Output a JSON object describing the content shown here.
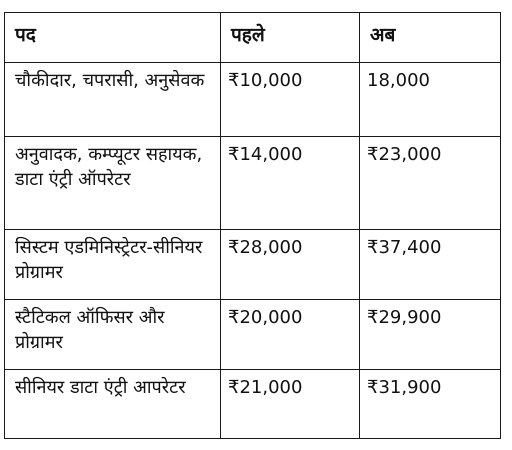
{
  "table": {
    "headers": [
      "पद",
      "पहले",
      "अब"
    ],
    "rows": [
      {
        "post": "चौकीदार, चपरासी, अनुसेवक",
        "before": "₹10,000",
        "now": "18,000"
      },
      {
        "post": "अनुवादक, कम्प्यूटर सहायक, डाटा एंट्री ऑपरेटर",
        "before": "₹14,000",
        "now": "₹23,000"
      },
      {
        "post": "सिस्टम एडमिनिस्ट्रेटर-सीनियर प्रोग्रामर",
        "before": "₹28,000",
        "now": "₹37,400"
      },
      {
        "post": "स्टैटिकल ऑफिसर और प्रोग्रामर",
        "before": "₹20,000",
        "now": "₹29,900"
      },
      {
        "post": "सीनियर डाटा एंट्री आपरेटर",
        "before": "₹21,000",
        "now": "₹31,900"
      }
    ]
  }
}
